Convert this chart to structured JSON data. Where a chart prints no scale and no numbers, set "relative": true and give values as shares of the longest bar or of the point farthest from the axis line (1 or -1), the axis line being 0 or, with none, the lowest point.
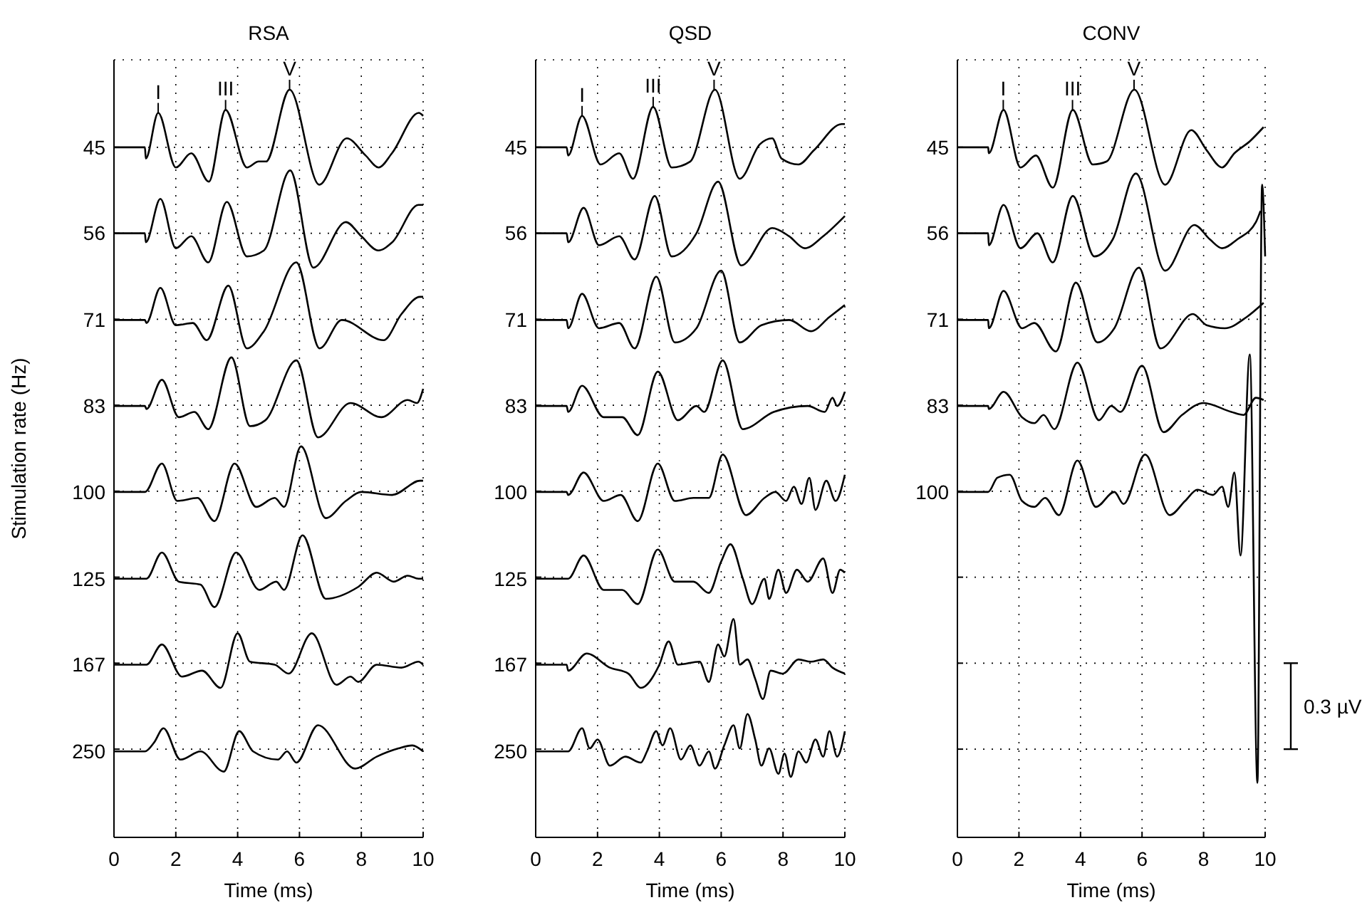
{
  "chart_data": [
    {
      "type": "line",
      "title": "RSA",
      "legend": "left",
      "xlabel": "Time (ms)",
      "ylabel": "Stimulation rate (Hz)",
      "xlim": [
        0,
        10
      ],
      "xticks": [
        0,
        2,
        4,
        6,
        8,
        10
      ],
      "relative": true,
      "grid": true,
      "annotations": [
        {
          "text": "I",
          "x": 1.43,
          "y": 0.969
        },
        {
          "text": "III",
          "x": 3.61,
          "y": 0.973
        },
        {
          "text": "V",
          "x": 5.68,
          "y": 1
        }
      ],
      "series": [
        {
          "name": "45",
          "color": "#000000",
          "x": [
            0,
            1,
            1.03,
            1.43,
            2,
            2.5,
            3.07,
            3.61,
            4.3,
            4.68,
            4.92,
            5.68,
            6.64,
            7.53,
            8.14,
            8.56,
            8.99,
            9.86,
            10
          ],
          "values": [
            0.923,
            0.923,
            0.908,
            0.969,
            0.896,
            0.915,
            0.877,
            0.973,
            0.896,
            0.904,
            0.904,
            1,
            0.873,
            0.935,
            0.912,
            0.896,
            0.915,
            0.969,
            0.965
          ]
        },
        {
          "name": "56",
          "color": "#000000",
          "x": [
            0,
            1,
            1.03,
            1.5,
            2,
            2.5,
            3.05,
            3.65,
            4.3,
            4.85,
            5.7,
            6.45,
            7.5,
            8,
            8.55,
            9,
            9.85,
            10
          ],
          "values": [
            0.808,
            0.808,
            0.796,
            0.854,
            0.788,
            0.804,
            0.769,
            0.85,
            0.777,
            0.785,
            0.892,
            0.762,
            0.823,
            0.804,
            0.785,
            0.796,
            0.846,
            0.846
          ]
        },
        {
          "name": "71",
          "color": "#000000",
          "x": [
            0,
            1,
            1.05,
            1.5,
            2,
            2.55,
            3,
            3.7,
            4.3,
            4.85,
            5.9,
            6.65,
            7.37,
            8.72,
            9.3,
            9.9,
            10
          ],
          "values": [
            0.692,
            0.692,
            0.688,
            0.735,
            0.685,
            0.688,
            0.665,
            0.738,
            0.654,
            0.677,
            0.769,
            0.654,
            0.692,
            0.665,
            0.7,
            0.723,
            0.723
          ]
        },
        {
          "name": "83",
          "color": "#000000",
          "x": [
            0,
            1,
            1.05,
            1.55,
            2.1,
            2.6,
            3.05,
            3.8,
            4.4,
            4.9,
            5.9,
            6.6,
            7.65,
            8.65,
            9.5,
            9.8,
            10
          ],
          "values": [
            0.577,
            0.577,
            0.573,
            0.612,
            0.562,
            0.569,
            0.546,
            0.642,
            0.55,
            0.558,
            0.638,
            0.535,
            0.581,
            0.562,
            0.585,
            0.581,
            0.6
          ]
        },
        {
          "name": "100",
          "color": "#000000",
          "x": [
            0,
            1,
            1.55,
            2.05,
            2.7,
            3.25,
            3.9,
            4.6,
            5.2,
            5.5,
            6.05,
            6.85,
            7.5,
            8,
            9,
            9.9,
            10
          ],
          "values": [
            0.462,
            0.462,
            0.5,
            0.45,
            0.454,
            0.423,
            0.5,
            0.442,
            0.454,
            0.442,
            0.523,
            0.427,
            0.45,
            0.462,
            0.458,
            0.477,
            0.477
          ]
        },
        {
          "name": "125",
          "color": "#000000",
          "x": [
            0,
            1.05,
            1.55,
            2.1,
            2.8,
            3.25,
            3.95,
            4.7,
            5.25,
            5.5,
            6.1,
            6.85,
            7.9,
            8.5,
            9.05,
            9.5,
            9.85,
            10
          ],
          "values": [
            0.346,
            0.346,
            0.381,
            0.342,
            0.338,
            0.308,
            0.381,
            0.331,
            0.342,
            0.331,
            0.404,
            0.319,
            0.335,
            0.354,
            0.342,
            0.35,
            0.346,
            0.346
          ]
        },
        {
          "name": "167",
          "color": "#000000",
          "x": [
            0,
            1.05,
            1.55,
            2.2,
            2.85,
            3.45,
            4,
            4.4,
            5.2,
            5.65,
            6.4,
            7.2,
            7.65,
            7.9,
            8.5,
            9.3,
            9.85,
            10
          ],
          "values": [
            0.231,
            0.231,
            0.258,
            0.215,
            0.223,
            0.2,
            0.273,
            0.235,
            0.231,
            0.219,
            0.273,
            0.204,
            0.215,
            0.208,
            0.231,
            0.227,
            0.235,
            0.231
          ]
        },
        {
          "name": "250",
          "color": "#000000",
          "x": [
            0,
            1,
            1.3,
            1.6,
            2.15,
            2.8,
            3.55,
            4.05,
            4.5,
            5.3,
            5.6,
            5.9,
            6.6,
            7.8,
            8.5,
            9.2,
            9.65,
            10
          ],
          "values": [
            0.115,
            0.115,
            0.127,
            0.146,
            0.104,
            0.115,
            0.088,
            0.142,
            0.115,
            0.104,
            0.115,
            0.1,
            0.15,
            0.092,
            0.108,
            0.119,
            0.123,
            0.115
          ]
        }
      ]
    },
    {
      "type": "line",
      "title": "QSD",
      "legend": "left",
      "xlabel": "Time (ms)",
      "xlim": [
        0,
        10
      ],
      "xticks": [
        0,
        2,
        4,
        6,
        8,
        10
      ],
      "relative": true,
      "grid": true,
      "annotations": [
        {
          "text": "I",
          "x": 1.5,
          "y": 0.965
        },
        {
          "text": "III",
          "x": 3.8,
          "y": 0.977
        },
        {
          "text": "V",
          "x": 5.77,
          "y": 1
        }
      ],
      "series": [
        {
          "name": "45",
          "color": "#000000",
          "x": [
            0,
            1,
            1.05,
            1.5,
            2.1,
            2.7,
            3.15,
            3.8,
            4.4,
            5,
            5.8,
            6.6,
            7.25,
            7.65,
            7.95,
            8.5,
            9,
            9.9,
            10
          ],
          "values": [
            0.923,
            0.923,
            0.912,
            0.965,
            0.9,
            0.915,
            0.881,
            0.977,
            0.896,
            0.904,
            1,
            0.881,
            0.927,
            0.935,
            0.908,
            0.9,
            0.919,
            0.954,
            0.954
          ]
        },
        {
          "name": "56",
          "color": "#000000",
          "x": [
            0,
            1,
            1.05,
            1.55,
            2.05,
            2.7,
            3.2,
            3.85,
            4.4,
            5.2,
            5.9,
            6.65,
            7.65,
            8.2,
            8.7,
            9.3,
            10
          ],
          "values": [
            0.808,
            0.808,
            0.796,
            0.842,
            0.792,
            0.804,
            0.773,
            0.858,
            0.777,
            0.808,
            0.877,
            0.765,
            0.815,
            0.804,
            0.788,
            0.804,
            0.831
          ]
        },
        {
          "name": "71",
          "color": "#000000",
          "x": [
            0,
            1,
            1.05,
            1.5,
            2.05,
            2.7,
            3.2,
            3.9,
            4.5,
            5.2,
            6,
            6.6,
            7.3,
            8.2,
            8.9,
            9.5,
            10
          ],
          "values": [
            0.692,
            0.692,
            0.681,
            0.727,
            0.681,
            0.688,
            0.654,
            0.75,
            0.662,
            0.681,
            0.758,
            0.662,
            0.685,
            0.692,
            0.677,
            0.696,
            0.712
          ]
        },
        {
          "name": "83",
          "color": "#000000",
          "x": [
            0,
            1,
            1.05,
            1.5,
            2.2,
            2.8,
            3.3,
            3.95,
            4.6,
            5.2,
            5.45,
            6.05,
            6.7,
            7.7,
            8.8,
            9.35,
            9.6,
            9.75,
            10
          ],
          "values": [
            0.577,
            0.577,
            0.569,
            0.604,
            0.562,
            0.562,
            0.538,
            0.623,
            0.558,
            0.577,
            0.569,
            0.638,
            0.546,
            0.569,
            0.577,
            0.569,
            0.588,
            0.577,
            0.596
          ]
        },
        {
          "name": "100",
          "color": "#000000",
          "x": [
            0,
            1,
            1.05,
            1.55,
            2.2,
            2.75,
            3.3,
            3.95,
            4.5,
            5.1,
            5.6,
            6.05,
            6.8,
            7.4,
            7.75,
            8.1,
            8.35,
            8.6,
            8.85,
            9.05,
            9.4,
            9.7,
            10
          ],
          "values": [
            0.462,
            0.462,
            0.458,
            0.488,
            0.45,
            0.458,
            0.423,
            0.5,
            0.45,
            0.454,
            0.454,
            0.512,
            0.431,
            0.454,
            0.462,
            0.45,
            0.469,
            0.446,
            0.481,
            0.438,
            0.477,
            0.45,
            0.485
          ]
        },
        {
          "name": "125",
          "color": "#000000",
          "x": [
            0,
            1,
            1.05,
            1.55,
            2.2,
            2.8,
            3.3,
            3.95,
            4.5,
            5.1,
            5.6,
            6,
            6.3,
            6.7,
            7,
            7.4,
            7.55,
            7.85,
            8.1,
            8.45,
            8.8,
            9.3,
            9.6,
            9.85,
            10
          ],
          "values": [
            0.346,
            0.346,
            0.346,
            0.377,
            0.331,
            0.331,
            0.312,
            0.385,
            0.342,
            0.342,
            0.327,
            0.369,
            0.392,
            0.346,
            0.312,
            0.346,
            0.319,
            0.358,
            0.327,
            0.358,
            0.342,
            0.373,
            0.327,
            0.358,
            0.354
          ]
        },
        {
          "name": "167",
          "color": "#000000",
          "x": [
            0,
            1,
            1.05,
            1.65,
            2.4,
            3,
            3.4,
            4,
            4.3,
            4.6,
            5.3,
            5.6,
            5.9,
            6.1,
            6.4,
            6.6,
            6.85,
            7.1,
            7.35,
            7.6,
            8,
            8.5,
            8.9,
            9.3,
            9.6,
            10
          ],
          "values": [
            0.231,
            0.231,
            0.223,
            0.246,
            0.227,
            0.219,
            0.2,
            0.231,
            0.262,
            0.231,
            0.235,
            0.208,
            0.258,
            0.242,
            0.292,
            0.231,
            0.238,
            0.212,
            0.185,
            0.223,
            0.219,
            0.238,
            0.235,
            0.238,
            0.227,
            0.219
          ]
        },
        {
          "name": "250",
          "color": "#000000",
          "x": [
            0,
            1,
            1.05,
            1.5,
            1.75,
            2,
            2.4,
            2.9,
            3.4,
            3.6,
            3.9,
            4.1,
            4.35,
            4.7,
            5,
            5.3,
            5.6,
            5.8,
            6.1,
            6.4,
            6.6,
            6.85,
            7.1,
            7.3,
            7.55,
            7.85,
            8.05,
            8.25,
            8.5,
            8.75,
            9.05,
            9.3,
            9.5,
            9.75,
            10
          ],
          "values": [
            0.115,
            0.115,
            0.115,
            0.146,
            0.119,
            0.131,
            0.096,
            0.108,
            0.1,
            0.115,
            0.142,
            0.123,
            0.146,
            0.104,
            0.123,
            0.096,
            0.115,
            0.092,
            0.123,
            0.15,
            0.119,
            0.165,
            0.131,
            0.096,
            0.119,
            0.085,
            0.112,
            0.081,
            0.115,
            0.1,
            0.131,
            0.108,
            0.142,
            0.108,
            0.142
          ]
        }
      ]
    },
    {
      "type": "line",
      "title": "CONV",
      "legend": "left",
      "xlabel": "Time (ms)",
      "xlim": [
        0,
        10
      ],
      "xticks": [
        0,
        2,
        4,
        6,
        8,
        10
      ],
      "relative": true,
      "grid": true,
      "annotations": [
        {
          "text": "I",
          "x": 1.49,
          "y": 0.973
        },
        {
          "text": "III",
          "x": 3.74,
          "y": 0.973
        },
        {
          "text": "V",
          "x": 5.74,
          "y": 1
        },
        "0.3 µV"
      ],
      "series": [
        {
          "name": "45",
          "color": "#000000",
          "x": [
            0,
            1,
            1.02,
            1.5,
            2.05,
            2.55,
            3.1,
            3.75,
            4.4,
            4.85,
            5.75,
            6.75,
            7.6,
            8.1,
            8.6,
            9,
            9.5,
            9.95
          ],
          "values": [
            0.923,
            0.923,
            0.915,
            0.973,
            0.896,
            0.912,
            0.869,
            0.973,
            0.9,
            0.904,
            1,
            0.873,
            0.946,
            0.919,
            0.896,
            0.915,
            0.931,
            0.95
          ]
        },
        {
          "name": "56",
          "color": "#000000",
          "x": [
            0,
            1,
            1.02,
            1.5,
            2.05,
            2.6,
            3.1,
            3.75,
            4.45,
            5.05,
            5.8,
            6.75,
            7.7,
            8.2,
            8.6,
            9.1,
            9.7,
            9.85
          ],
          "values": [
            0.808,
            0.808,
            0.792,
            0.846,
            0.788,
            0.808,
            0.769,
            0.858,
            0.777,
            0.8,
            0.888,
            0.758,
            0.819,
            0.8,
            0.788,
            0.8,
            0.823,
            0.838
          ]
        },
        {
          "name": "71",
          "color": "#000000",
          "x": [
            0,
            1,
            1.02,
            1.5,
            2.1,
            2.5,
            3.2,
            3.85,
            4.55,
            5.1,
            5.9,
            6.6,
            7.65,
            8.1,
            8.69,
            9.4,
            9.95
          ],
          "values": [
            0.692,
            0.692,
            0.681,
            0.731,
            0.681,
            0.688,
            0.65,
            0.742,
            0.662,
            0.681,
            0.762,
            0.654,
            0.7,
            0.685,
            0.681,
            0.696,
            0.715
          ]
        },
        {
          "name": "83",
          "color": "#000000",
          "x": [
            0,
            1,
            1.02,
            1.5,
            2.1,
            2.5,
            2.8,
            3.15,
            3.9,
            4.6,
            5,
            5.3,
            6,
            6.7,
            7.3,
            8,
            8.9,
            9.3,
            9.7,
            9.95
          ],
          "values": [
            0.577,
            0.577,
            0.573,
            0.596,
            0.562,
            0.554,
            0.565,
            0.546,
            0.635,
            0.558,
            0.577,
            0.569,
            0.631,
            0.542,
            0.565,
            0.581,
            0.569,
            0.565,
            0.588,
            0.585
          ]
        },
        {
          "name": "100",
          "color": "#000000",
          "x": [
            0,
            1,
            1.3,
            1.7,
            2.1,
            2.5,
            2.85,
            3.3,
            3.9,
            4.5,
            5.1,
            5.4,
            6.1,
            6.9,
            7.4,
            7.8,
            8.3,
            8.6,
            8.8,
            9,
            9.2,
            9.5,
            9.75,
            9.9,
            10
          ],
          "values": [
            0.462,
            0.462,
            0.481,
            0.485,
            0.45,
            0.442,
            0.454,
            0.431,
            0.504,
            0.442,
            0.462,
            0.446,
            0.512,
            0.431,
            0.45,
            0.465,
            0.458,
            0.469,
            0.442,
            0.488,
            0.377,
            0.646,
            0.073,
            0.873,
            0.777
          ]
        }
      ]
    }
  ]
}
